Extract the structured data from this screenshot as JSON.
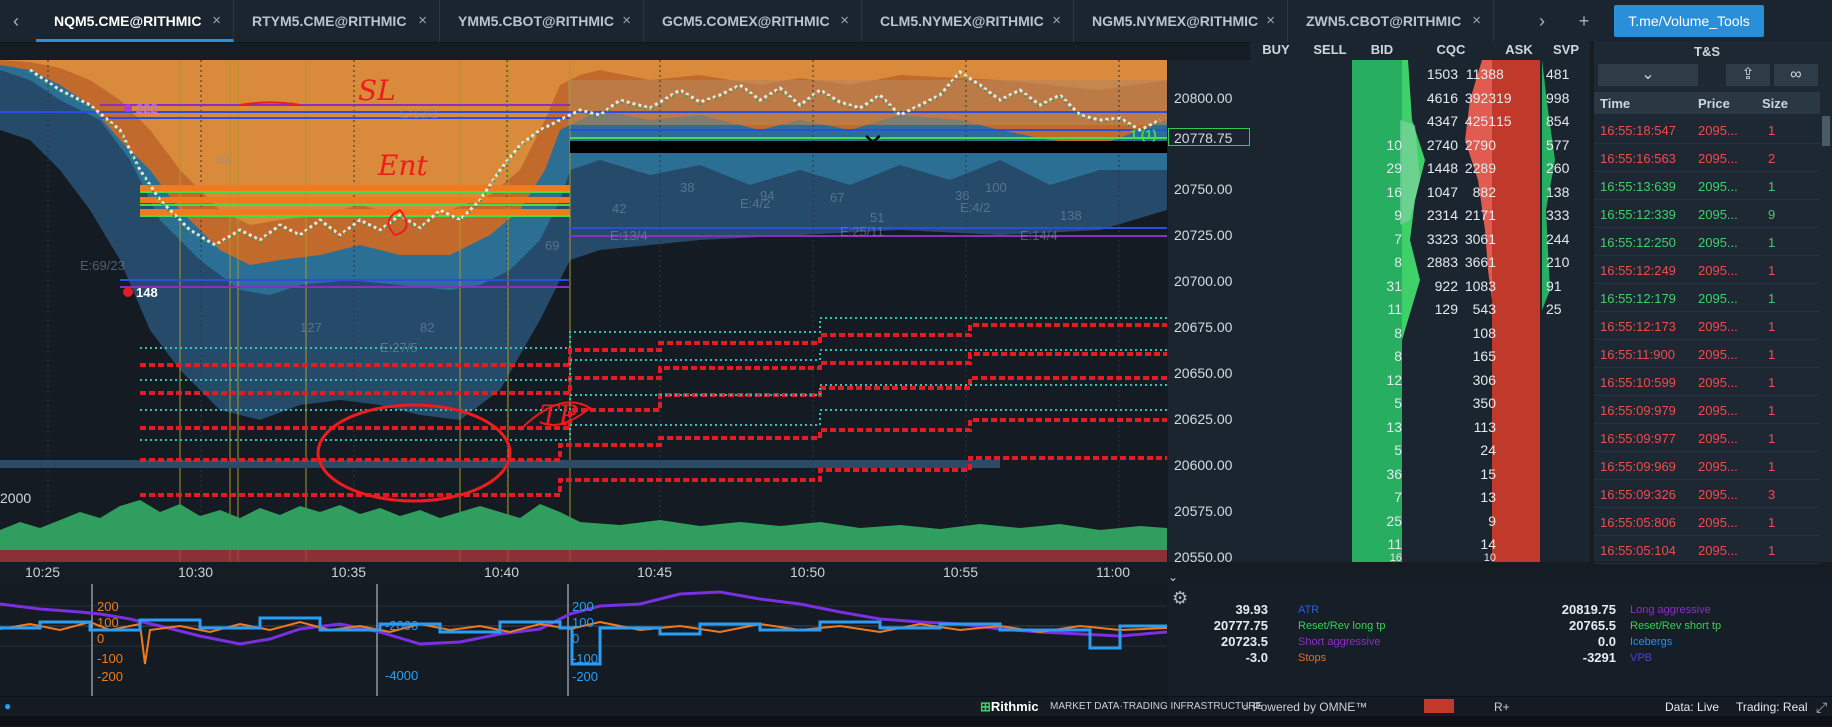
{
  "tabs": [
    {
      "label": "NQM5.CME@RITHMIC",
      "active": true
    },
    {
      "label": "RTYM5.CME@RITHMIC",
      "active": false
    },
    {
      "label": "YMM5.CBOT@RITHMIC",
      "active": false
    },
    {
      "label": "GCM5.COMEX@RITHMIC",
      "active": false
    },
    {
      "label": "CLM5.NYMEX@RITHMIC",
      "active": false
    },
    {
      "label": "NGM5.NYMEX@RITHMIC",
      "active": false
    },
    {
      "label": "ZWN5.CBOT@RITHMIC",
      "active": false
    }
  ],
  "tab_close_glyph": "×",
  "tab_prev_glyph": "‹",
  "tab_next_glyph": "›",
  "tab_add_glyph": "+",
  "volume_tools_label": "T.me/Volume_Tools",
  "chart": {
    "time_labels": [
      "10:25",
      "10:30",
      "10:35",
      "10:40",
      "10:45",
      "10:50",
      "10:55",
      "11:00"
    ],
    "price_labels": [
      "20800.00",
      "20778.75",
      "20750.00",
      "20725.00",
      "20700.00",
      "20675.00",
      "20650.00",
      "20625.00",
      "20600.00",
      "20575.00",
      "20550.00"
    ],
    "current_price": "20778.75",
    "volume_axis_label": "2000",
    "marker_222": "222",
    "marker_148": "148",
    "position_label": "1 (1)",
    "chart_texts": [
      "E:13/2",
      "E:69/23",
      "E:27/5",
      "E:13/4",
      "E:4/2",
      "E:25/11",
      "E:14/4",
      "E:4/2",
      "127",
      "82",
      "94",
      "67",
      "51",
      "36",
      "100",
      "138",
      "69",
      "38",
      "42",
      "49"
    ],
    "handwriting": [
      "SL",
      "Ent",
      "TP"
    ],
    "colors": {
      "sl_line": "#e8252d",
      "entry_band": "#f07a1c",
      "entry_line": "#41e04a",
      "level_blue": "#2a4ee0",
      "level_purple": "#8a2fbf",
      "stop_dashes": "#e11c25",
      "cyan_dots": "#2fc2b3",
      "up_volume": "#2f9e5e",
      "down_volume": "#b5342e"
    }
  },
  "oscillator": {
    "labels_left": [
      "200",
      "100",
      "0",
      "-100",
      "-200"
    ],
    "labels_mid": [
      "-2000",
      "-4000"
    ],
    "labels_right": [
      "200",
      "100",
      "0",
      "-100",
      "-200"
    ],
    "colors": {
      "purple": "#7a2fe0",
      "orange": "#f07a1c",
      "blue": "#2a9df4"
    }
  },
  "dom": {
    "headers": [
      "BUY",
      "SELL",
      "BID",
      "CQC",
      "ASK",
      "SVP"
    ],
    "rows": [
      {
        "bid": "",
        "cqc_l": "1503",
        "cqc_r": "1138",
        "ask": "8",
        "svp": "481"
      },
      {
        "bid": "",
        "cqc_l": "4616",
        "cqc_r": "3923",
        "ask": "19",
        "svp": "998"
      },
      {
        "bid": "",
        "cqc_l": "4347",
        "cqc_r": "4251",
        "ask": "15",
        "svp": "854"
      },
      {
        "bid": "10",
        "cqc_l": "2740",
        "cqc_r": "2790",
        "ask": "",
        "svp": "577"
      },
      {
        "bid": "29",
        "cqc_l": "1448",
        "cqc_r": "2289",
        "ask": "",
        "svp": "260"
      },
      {
        "bid": "16",
        "cqc_l": "1047",
        "cqc_r": "882",
        "ask": "",
        "svp": "138"
      },
      {
        "bid": "9",
        "cqc_l": "2314",
        "cqc_r": "2171",
        "ask": "",
        "svp": "333"
      },
      {
        "bid": "7",
        "cqc_l": "3323",
        "cqc_r": "3061",
        "ask": "",
        "svp": "244"
      },
      {
        "bid": "8",
        "cqc_l": "2883",
        "cqc_r": "3661",
        "ask": "",
        "svp": "210"
      },
      {
        "bid": "31",
        "cqc_l": "922",
        "cqc_r": "1083",
        "ask": "",
        "svp": "91"
      },
      {
        "bid": "11",
        "cqc_l": "129",
        "cqc_r": "543",
        "ask": "",
        "svp": "25"
      },
      {
        "bid": "8",
        "cqc_l": "",
        "cqc_r": "108",
        "ask": "",
        "svp": ""
      },
      {
        "bid": "8",
        "cqc_l": "",
        "cqc_r": "165",
        "ask": "",
        "svp": ""
      },
      {
        "bid": "12",
        "cqc_l": "",
        "cqc_r": "306",
        "ask": "",
        "svp": ""
      },
      {
        "bid": "5",
        "cqc_l": "",
        "cqc_r": "350",
        "ask": "",
        "svp": ""
      },
      {
        "bid": "13",
        "cqc_l": "",
        "cqc_r": "113",
        "ask": "",
        "svp": ""
      },
      {
        "bid": "5",
        "cqc_l": "",
        "cqc_r": "24",
        "ask": "",
        "svp": ""
      },
      {
        "bid": "36",
        "cqc_l": "",
        "cqc_r": "15",
        "ask": "",
        "svp": ""
      },
      {
        "bid": "7",
        "cqc_l": "",
        "cqc_r": "13",
        "ask": "",
        "svp": ""
      },
      {
        "bid": "25",
        "cqc_l": "",
        "cqc_r": "9",
        "ask": "",
        "svp": ""
      },
      {
        "bid": "11",
        "cqc_l": "",
        "cqc_r": "14",
        "ask": "",
        "svp": ""
      },
      {
        "bid": "16",
        "cqc_l": "",
        "cqc_r": "10",
        "ask": "",
        "svp": ""
      }
    ],
    "colors": {
      "bid": "#27ae60",
      "ask": "#c0392b",
      "cqc_bid": "#2e9e59",
      "cqc_ask": "#d4473d"
    }
  },
  "ts": {
    "title": "T&S",
    "headers": [
      "Time",
      "Price",
      "Size"
    ],
    "rows": [
      {
        "time": "16:55:18:547",
        "price": "2095...",
        "size": "1",
        "side": "sell"
      },
      {
        "time": "16:55:16:563",
        "price": "2095...",
        "size": "2",
        "side": "sell"
      },
      {
        "time": "16:55:13:639",
        "price": "2095...",
        "size": "1",
        "side": "buy"
      },
      {
        "time": "16:55:12:339",
        "price": "2095...",
        "size": "9",
        "side": "buy"
      },
      {
        "time": "16:55:12:250",
        "price": "2095...",
        "size": "1",
        "side": "buy"
      },
      {
        "time": "16:55:12:249",
        "price": "2095...",
        "size": "1",
        "side": "sell"
      },
      {
        "time": "16:55:12:179",
        "price": "2095...",
        "size": "1",
        "side": "buy"
      },
      {
        "time": "16:55:12:173",
        "price": "2095...",
        "size": "1",
        "side": "sell"
      },
      {
        "time": "16:55:11:900",
        "price": "2095...",
        "size": "1",
        "side": "sell"
      },
      {
        "time": "16:55:10:599",
        "price": "2095...",
        "size": "1",
        "side": "sell"
      },
      {
        "time": "16:55:09:979",
        "price": "2095...",
        "size": "1",
        "side": "sell"
      },
      {
        "time": "16:55:09:977",
        "price": "2095...",
        "size": "1",
        "side": "sell"
      },
      {
        "time": "16:55:09:969",
        "price": "2095...",
        "size": "1",
        "side": "sell"
      },
      {
        "time": "16:55:09:326",
        "price": "2095...",
        "size": "3",
        "side": "sell"
      },
      {
        "time": "16:55:05:806",
        "price": "2095...",
        "size": "1",
        "side": "sell"
      },
      {
        "time": "16:55:05:104",
        "price": "2095...",
        "size": "1",
        "side": "sell"
      }
    ],
    "colors": {
      "buy": "#3fd06a",
      "sell": "#ef4d4d"
    }
  },
  "stats": {
    "left_values": [
      "39.93",
      "20777.75",
      "20723.5",
      "-3.0"
    ],
    "left_labels": [
      {
        "text": "ATR",
        "color": "#2b5fe0"
      },
      {
        "text": "Reset/Rev long tp",
        "color": "#34d34a"
      },
      {
        "text": "Short aggressive",
        "color": "#8b2fc9"
      },
      {
        "text": "Stops",
        "color": "#e06e28"
      }
    ],
    "right_values": [
      "20819.75",
      "20765.5",
      "0.0",
      "-3291"
    ],
    "right_labels": [
      {
        "text": "Long aggressive",
        "color": "#8b2fc9"
      },
      {
        "text": "Reset/Rev short tp",
        "color": "#34d34a"
      },
      {
        "text": "Icebergs",
        "color": "#2b8ef0"
      },
      {
        "text": "VPB",
        "color": "#4b42d8"
      }
    ]
  },
  "status": {
    "brand": "Rithmic",
    "brand_sub": "MARKET DATA·TRADING INFRASTRUCTURE",
    "powered": "Powered by OMNE™",
    "r_plus": "R+",
    "data": "Data: Live",
    "trading": "Trading: Real"
  }
}
